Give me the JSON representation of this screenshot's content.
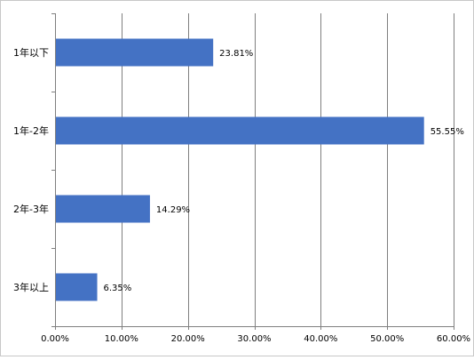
{
  "chart_data": {
    "type": "bar",
    "orientation": "horizontal",
    "categories": [
      "1年以下",
      "1年-2年",
      "2年-3年",
      "3年以上"
    ],
    "values": [
      23.81,
      55.55,
      14.29,
      6.35
    ],
    "value_labels": [
      "23.81%",
      "55.55%",
      "14.29%",
      "6.35%"
    ],
    "title": "",
    "xlabel": "",
    "ylabel": "",
    "xlim": [
      0,
      60
    ],
    "x_ticks": [
      0,
      10,
      20,
      30,
      40,
      50,
      60
    ],
    "x_tick_labels": [
      "0.00%",
      "10.00%",
      "20.00%",
      "30.00%",
      "40.00%",
      "50.00%",
      "60.00%"
    ],
    "grid": "vertical",
    "legend": "none",
    "colors": {
      "bar": "#4472c4",
      "grid": "#7f7f7f",
      "axis": "#7f7f7f",
      "text": "#000000"
    }
  }
}
